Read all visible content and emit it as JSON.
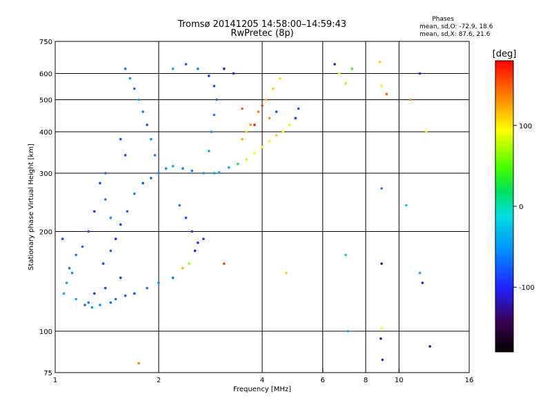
{
  "chart_data": {
    "type": "scatter",
    "title": "Tromsø 20141205 14:58:00–14:59:43",
    "subtitle": "RwPretec (8p)",
    "xlabel": "Frequency [MHz]",
    "ylabel": "Stationary phase Virtual Height [km]",
    "x_scale": "log",
    "y_scale": "log",
    "xlim": [
      1,
      16
    ],
    "ylim": [
      75,
      750
    ],
    "x_ticks": [
      {
        "value": 1,
        "label": "1"
      },
      {
        "value": 2,
        "label": "2"
      },
      {
        "value": 4,
        "label": "4"
      },
      {
        "value": 6,
        "label": "6"
      },
      {
        "value": 8,
        "label": "8"
      },
      {
        "value": 10,
        "label": "10"
      },
      {
        "value": 16,
        "label": "16"
      }
    ],
    "y_ticks": [
      {
        "value": 75,
        "label": "75"
      },
      {
        "value": 100,
        "label": "100"
      },
      {
        "value": 200,
        "label": "200"
      },
      {
        "value": 300,
        "label": "300"
      },
      {
        "value": 400,
        "label": "400"
      },
      {
        "value": 500,
        "label": "500"
      },
      {
        "value": 600,
        "label": "600"
      },
      {
        "value": 750,
        "label": "750"
      }
    ],
    "x_grid": [
      2,
      4,
      6,
      8,
      10
    ],
    "y_grid": [
      100,
      200,
      300,
      400,
      500,
      600
    ],
    "phase_stats": {
      "heading": "Phases",
      "line_o": "mean, sd,O: -72.9, 18.6",
      "line_x": "mean, sd,X:  87.6, 21.6"
    },
    "colorbar": {
      "label": "[deg]",
      "range": [
        -180,
        180
      ],
      "ticks": [
        {
          "value": 100,
          "label": "100"
        },
        {
          "value": 0,
          "label": "0"
        },
        {
          "value": -100,
          "label": "-100"
        }
      ]
    },
    "points": [
      [
        1.05,
        190,
        -80
      ],
      [
        1.1,
        155,
        -60
      ],
      [
        1.15,
        125,
        -40
      ],
      [
        1.22,
        120,
        -70
      ],
      [
        1.3,
        130,
        -90
      ],
      [
        1.38,
        160,
        -85
      ],
      [
        1.45,
        175,
        -75
      ],
      [
        1.5,
        190,
        -95
      ],
      [
        1.55,
        210,
        -90
      ],
      [
        1.62,
        230,
        -70
      ],
      [
        1.7,
        260,
        -60
      ],
      [
        1.8,
        280,
        -80
      ],
      [
        1.9,
        290,
        -70
      ],
      [
        2.0,
        300,
        -60
      ],
      [
        2.1,
        310,
        -50
      ],
      [
        2.2,
        315,
        -40
      ],
      [
        2.35,
        310,
        -55
      ],
      [
        2.5,
        305,
        -60
      ],
      [
        2.7,
        300,
        -50
      ],
      [
        2.9,
        300,
        -40
      ],
      [
        3.0,
        302,
        -30
      ],
      [
        3.2,
        312,
        -35
      ],
      [
        3.4,
        320,
        30
      ],
      [
        3.6,
        330,
        80
      ],
      [
        3.8,
        345,
        90
      ],
      [
        4.0,
        360,
        95
      ],
      [
        4.2,
        375,
        100
      ],
      [
        4.4,
        390,
        110
      ],
      [
        4.6,
        400,
        95
      ],
      [
        4.8,
        420,
        85
      ],
      [
        5.0,
        440,
        -90
      ],
      [
        5.1,
        470,
        -80
      ],
      [
        3.5,
        380,
        120
      ],
      [
        3.7,
        420,
        130
      ],
      [
        3.9,
        460,
        140
      ],
      [
        4.1,
        500,
        120
      ],
      [
        4.3,
        540,
        110
      ],
      [
        4.5,
        580,
        100
      ],
      [
        3.3,
        600,
        -100
      ],
      [
        3.1,
        620,
        -110
      ],
      [
        1.6,
        620,
        -60
      ],
      [
        1.65,
        580,
        -50
      ],
      [
        1.7,
        540,
        -70
      ],
      [
        1.75,
        500,
        -40
      ],
      [
        1.8,
        460,
        -60
      ],
      [
        1.85,
        420,
        -80
      ],
      [
        1.9,
        380,
        -50
      ],
      [
        1.95,
        340,
        -60
      ],
      [
        1.55,
        380,
        -75
      ],
      [
        1.6,
        340,
        -85
      ],
      [
        2.2,
        620,
        -40
      ],
      [
        2.4,
        640,
        -70
      ],
      [
        2.6,
        620,
        -60
      ],
      [
        2.8,
        590,
        -90
      ],
      [
        2.9,
        550,
        -80
      ],
      [
        2.95,
        500,
        -70
      ],
      [
        2.9,
        450,
        -60
      ],
      [
        2.85,
        400,
        -50
      ],
      [
        2.8,
        350,
        -40
      ],
      [
        1.4,
        300,
        -70
      ],
      [
        1.35,
        280,
        -85
      ],
      [
        1.4,
        250,
        -60
      ],
      [
        1.45,
        220,
        -50
      ],
      [
        1.3,
        230,
        -95
      ],
      [
        1.25,
        200,
        -80
      ],
      [
        1.2,
        180,
        -70
      ],
      [
        1.15,
        170,
        -60
      ],
      [
        1.12,
        150,
        -55
      ],
      [
        1.08,
        140,
        -45
      ],
      [
        1.06,
        130,
        -40
      ],
      [
        2.3,
        240,
        -60
      ],
      [
        2.4,
        220,
        -80
      ],
      [
        2.5,
        200,
        -90
      ],
      [
        2.6,
        185,
        -95
      ],
      [
        2.7,
        190,
        -85
      ],
      [
        2.55,
        175,
        -100
      ],
      [
        2.45,
        160,
        70
      ],
      [
        2.35,
        155,
        120
      ],
      [
        2.2,
        145,
        -60
      ],
      [
        2.0,
        140,
        -50
      ],
      [
        1.85,
        135,
        -70
      ],
      [
        1.7,
        130,
        -80
      ],
      [
        1.6,
        128,
        -75
      ],
      [
        1.5,
        125,
        -65
      ],
      [
        1.45,
        122,
        -70
      ],
      [
        1.35,
        120,
        -55
      ],
      [
        1.28,
        118,
        -50
      ],
      [
        1.25,
        122,
        -60
      ],
      [
        1.4,
        135,
        -85
      ],
      [
        1.55,
        145,
        -90
      ],
      [
        6.5,
        640,
        -100
      ],
      [
        6.7,
        600,
        80
      ],
      [
        7.0,
        560,
        70
      ],
      [
        7.3,
        620,
        40
      ],
      [
        8.8,
        650,
        110
      ],
      [
        8.9,
        550,
        100
      ],
      [
        9.2,
        520,
        150
      ],
      [
        11.5,
        600,
        -100
      ],
      [
        10.8,
        500,
        130
      ],
      [
        12.0,
        400,
        100
      ],
      [
        8.9,
        270,
        -60
      ],
      [
        10.5,
        240,
        -20
      ],
      [
        7.0,
        170,
        -20
      ],
      [
        8.9,
        160,
        -120
      ],
      [
        11.5,
        150,
        -40
      ],
      [
        11.7,
        140,
        -100
      ],
      [
        8.9,
        102,
        90
      ],
      [
        8.85,
        95,
        -120
      ],
      [
        8.95,
        82,
        -100
      ],
      [
        12.3,
        90,
        -130
      ],
      [
        7.1,
        100,
        -40
      ],
      [
        1.75,
        80,
        140
      ],
      [
        3.1,
        160,
        160
      ],
      [
        4.7,
        150,
        110
      ],
      [
        3.5,
        470,
        150
      ],
      [
        4.0,
        480,
        160
      ],
      [
        3.8,
        420,
        170
      ],
      [
        3.6,
        400,
        110
      ],
      [
        4.2,
        440,
        130
      ],
      [
        4.4,
        460,
        -80
      ]
    ]
  }
}
